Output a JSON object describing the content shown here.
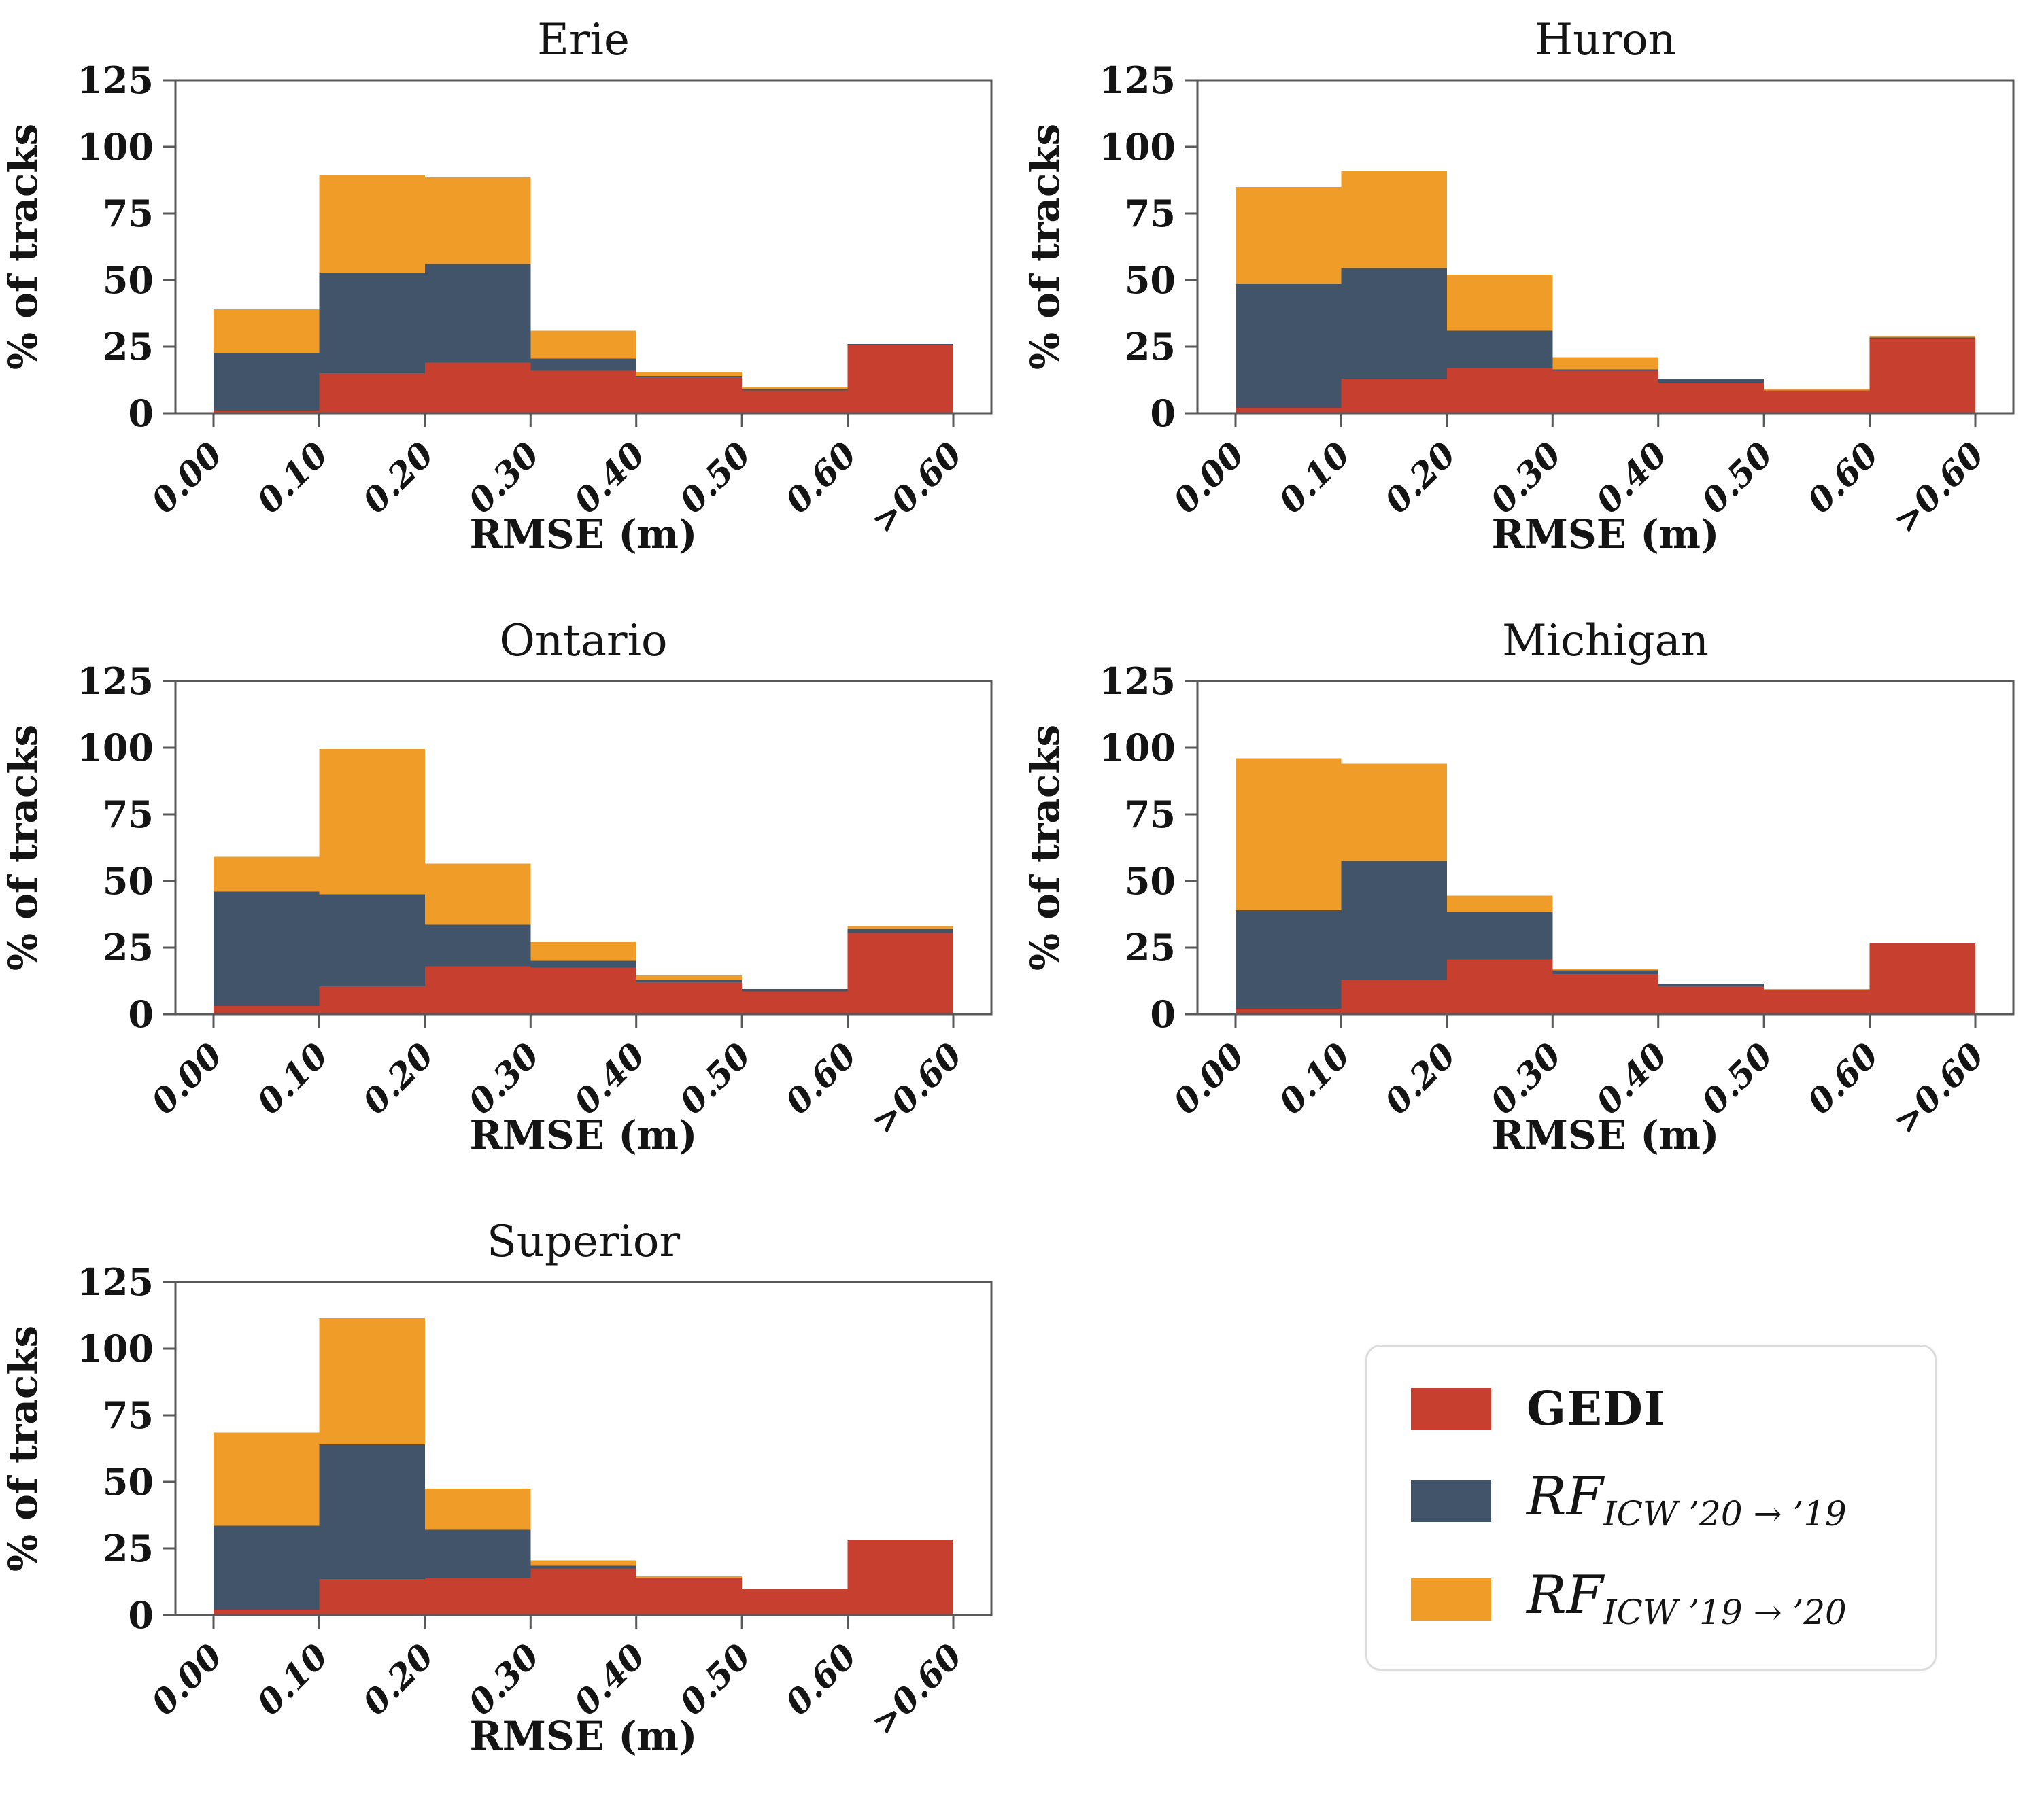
{
  "figure": {
    "background": "#ffffff",
    "frame_color": "#58595b",
    "text_color": "#141414"
  },
  "colors": {
    "gedi": "#c7402f",
    "rf_icw_20_19": "#42546a",
    "rf_icw_19_20": "#f09c28"
  },
  "chart_data": [
    {
      "type": "bar",
      "stacked": true,
      "title": "Erie",
      "xlabel": "RMSE (m)",
      "ylabel": "% of tracks",
      "ylim": [
        0,
        125
      ],
      "yticks": [
        0,
        25,
        50,
        75,
        100,
        125
      ],
      "bin_edges": [
        "0.00",
        "0.10",
        "0.20",
        "0.30",
        "0.40",
        "0.50",
        "0.60",
        ">0.60"
      ],
      "series": [
        {
          "name": "GEDI",
          "color": "#c7402f",
          "values": [
            1,
            15,
            19,
            16,
            13.5,
            8.5,
            25.5
          ]
        },
        {
          "name": "RF_ICW ’20→’19",
          "color": "#42546a",
          "values": [
            21.5,
            37.5,
            37,
            4.5,
            0.5,
            0.5,
            0.5
          ]
        },
        {
          "name": "RF_ICW ’19→’20",
          "color": "#f09c28",
          "values": [
            16.5,
            37,
            32.5,
            10.5,
            1.5,
            1,
            0
          ]
        }
      ]
    },
    {
      "type": "bar",
      "stacked": true,
      "title": "Huron",
      "xlabel": "RMSE (m)",
      "ylabel": "% of tracks",
      "ylim": [
        0,
        125
      ],
      "yticks": [
        0,
        25,
        50,
        75,
        100,
        125
      ],
      "bin_edges": [
        "0.00",
        "0.10",
        "0.20",
        "0.30",
        "0.40",
        "0.50",
        "0.60",
        ">0.60"
      ],
      "series": [
        {
          "name": "GEDI",
          "color": "#c7402f",
          "values": [
            2,
            13,
            17,
            16,
            11.5,
            8.5,
            28
          ]
        },
        {
          "name": "RF_ICW ’20→’19",
          "color": "#42546a",
          "values": [
            46.5,
            41.5,
            14,
            0.5,
            1.5,
            0,
            0.5
          ]
        },
        {
          "name": "RF_ICW ’19→’20",
          "color": "#f09c28",
          "values": [
            36.5,
            36.5,
            21,
            4.5,
            0,
            0.5,
            0.5
          ]
        }
      ]
    },
    {
      "type": "bar",
      "stacked": true,
      "title": "Ontario",
      "xlabel": "RMSE (m)",
      "ylabel": "% of tracks",
      "ylim": [
        0,
        125
      ],
      "yticks": [
        0,
        25,
        50,
        75,
        100,
        125
      ],
      "bin_edges": [
        "0.00",
        "0.10",
        "0.20",
        "0.30",
        "0.40",
        "0.50",
        "0.60",
        ">0.60"
      ],
      "series": [
        {
          "name": "GEDI",
          "color": "#c7402f",
          "values": [
            3,
            10.5,
            18,
            17.5,
            12,
            8.5,
            30.5
          ]
        },
        {
          "name": "RF_ICW ’20→’19",
          "color": "#42546a",
          "values": [
            43,
            34.5,
            15.5,
            2.5,
            1,
            1,
            1.5
          ]
        },
        {
          "name": "RF_ICW ’19→’20",
          "color": "#f09c28",
          "values": [
            13,
            54.5,
            23,
            7,
            1.5,
            0,
            1
          ]
        }
      ]
    },
    {
      "type": "bar",
      "stacked": true,
      "title": "Michigan",
      "xlabel": "RMSE (m)",
      "ylabel": "% of tracks",
      "ylim": [
        0,
        125
      ],
      "yticks": [
        0,
        25,
        50,
        75,
        100,
        125
      ],
      "bin_edges": [
        "0.00",
        "0.10",
        "0.20",
        "0.30",
        "0.40",
        "0.50",
        "0.60",
        ">0.60"
      ],
      "series": [
        {
          "name": "GEDI",
          "color": "#c7402f",
          "values": [
            2,
            13,
            20.5,
            15,
            10.5,
            9,
            26.5
          ]
        },
        {
          "name": "RF_ICW ’20→’19",
          "color": "#42546a",
          "values": [
            37,
            44.5,
            18,
            1.5,
            1,
            0,
            0
          ]
        },
        {
          "name": "RF_ICW ’19→’20",
          "color": "#f09c28",
          "values": [
            57,
            36.5,
            6,
            0.5,
            0,
            0.5,
            0
          ]
        }
      ]
    },
    {
      "type": "bar",
      "stacked": true,
      "title": "Superior",
      "xlabel": "RMSE (m)",
      "ylabel": "% of tracks",
      "ylim": [
        0,
        125
      ],
      "yticks": [
        0,
        25,
        50,
        75,
        100,
        125
      ],
      "bin_edges": [
        "0.00",
        "0.10",
        "0.20",
        "0.30",
        "0.40",
        "0.50",
        "0.60",
        ">0.60"
      ],
      "series": [
        {
          "name": "GEDI",
          "color": "#c7402f",
          "values": [
            2,
            13.5,
            14,
            17.5,
            14,
            10,
            28
          ]
        },
        {
          "name": "RF_ICW ’20→’19",
          "color": "#42546a",
          "values": [
            31.5,
            50.5,
            18,
            1,
            0,
            0,
            0
          ]
        },
        {
          "name": "RF_ICW ’19→’20",
          "color": "#f09c28",
          "values": [
            35,
            47.5,
            15.5,
            2,
            0.5,
            0,
            0
          ]
        }
      ]
    }
  ],
  "legend": {
    "items": [
      {
        "label": "GEDI",
        "color": "#c7402f"
      },
      {
        "prefix": "RF",
        "subscript": "ICW ’20 → ’19",
        "color": "#42546a"
      },
      {
        "prefix": "RF",
        "subscript": "ICW ’19 → ’20",
        "color": "#f09c28"
      }
    ]
  }
}
